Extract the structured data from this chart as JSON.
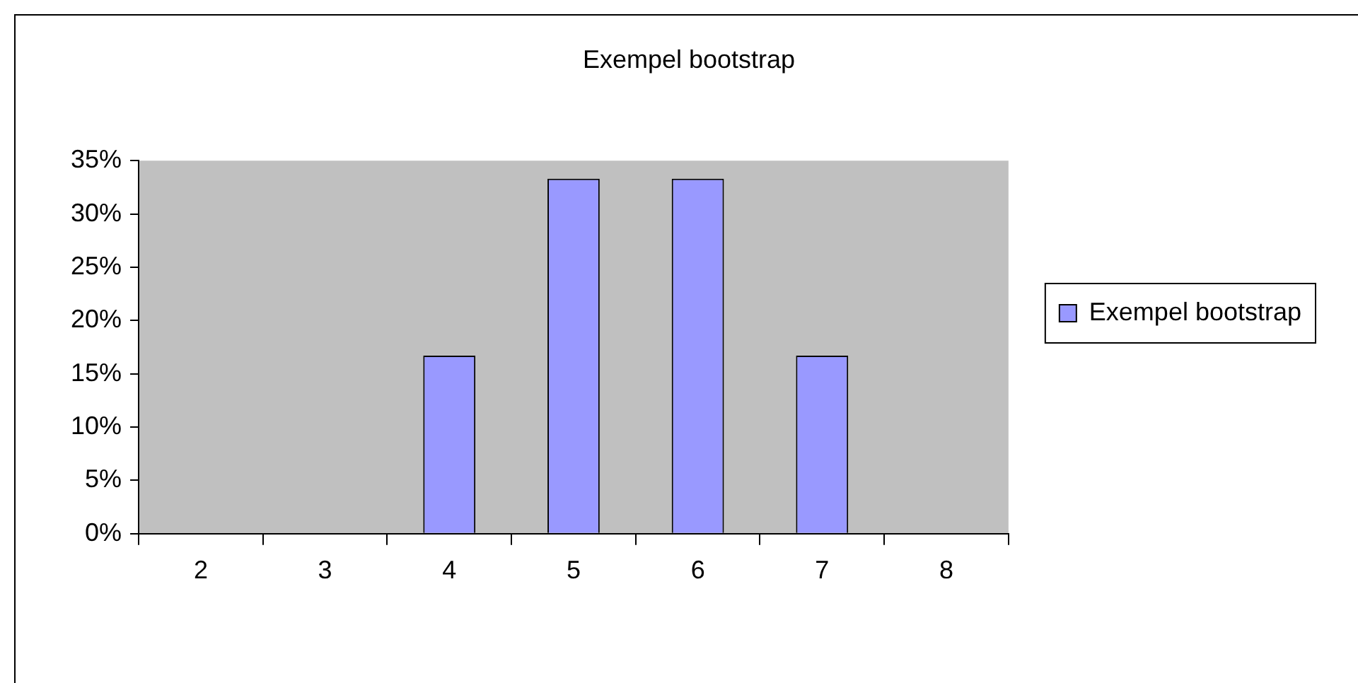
{
  "chart_data": {
    "type": "bar",
    "title": "Exempel bootstrap",
    "categories": [
      "2",
      "3",
      "4",
      "5",
      "6",
      "7",
      "8"
    ],
    "series": [
      {
        "name": "Exempel bootstrap",
        "color": "#9999ff",
        "values": [
          0,
          0,
          16.7,
          33.3,
          33.3,
          16.7,
          0
        ]
      }
    ],
    "ylim": [
      0,
      35
    ],
    "yticks": [
      {
        "value": 0,
        "label": "0%"
      },
      {
        "value": 5,
        "label": "5%"
      },
      {
        "value": 10,
        "label": "10%"
      },
      {
        "value": 15,
        "label": "15%"
      },
      {
        "value": 20,
        "label": "20%"
      },
      {
        "value": 25,
        "label": "25%"
      },
      {
        "value": 30,
        "label": "30%"
      },
      {
        "value": 35,
        "label": "35%"
      }
    ],
    "grid": false,
    "legend": "right"
  }
}
